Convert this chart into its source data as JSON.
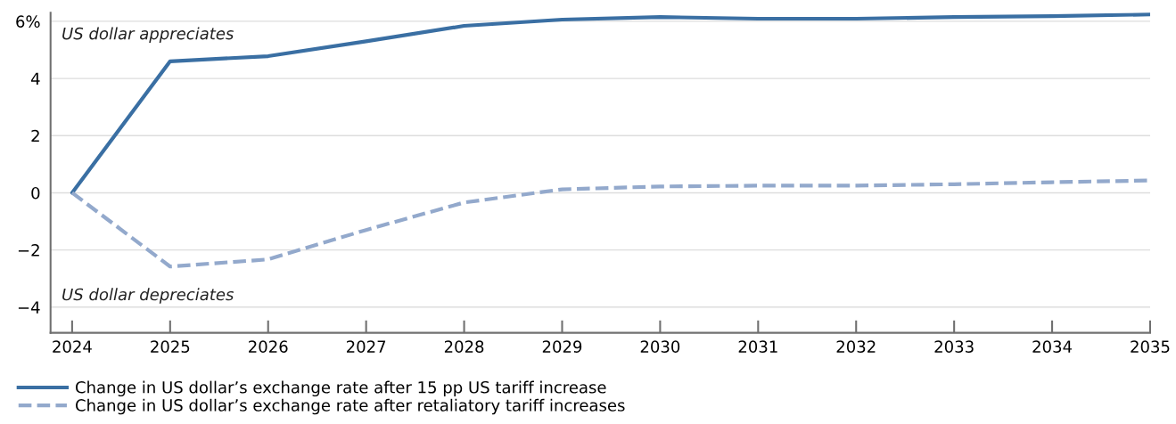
{
  "chart_data": {
    "type": "line",
    "categories": [
      "2024",
      "2025",
      "2026",
      "2027",
      "2028",
      "2029",
      "2030",
      "2031",
      "2032",
      "2033",
      "2034",
      "2035"
    ],
    "series": [
      {
        "name": "Change in US dollar’s exchange rate after 15 pp US tariff increase",
        "color": "#3a6fa3",
        "line_style": "solid",
        "values": [
          0,
          4.6,
          4.78,
          5.3,
          5.84,
          6.06,
          6.15,
          6.09,
          6.09,
          6.15,
          6.18,
          6.24
        ]
      },
      {
        "name": "Change in US dollar’s exchange rate after retaliatory tariff increases",
        "color": "#93a9cc",
        "line_style": "dashed",
        "values": [
          0,
          -2.58,
          -2.33,
          -1.3,
          -0.34,
          0.12,
          0.22,
          0.25,
          0.25,
          0.3,
          0.37,
          0.43
        ]
      }
    ],
    "ylim": [
      -4.9,
      6.3
    ],
    "yticks": [
      -4,
      -2,
      0,
      2,
      4,
      {
        "value": 6,
        "label": "6%"
      }
    ],
    "grid": "y",
    "legend": "bottom",
    "marker": "none",
    "annotations": [
      "US dollar appreciates",
      "US dollar depreciates"
    ]
  }
}
